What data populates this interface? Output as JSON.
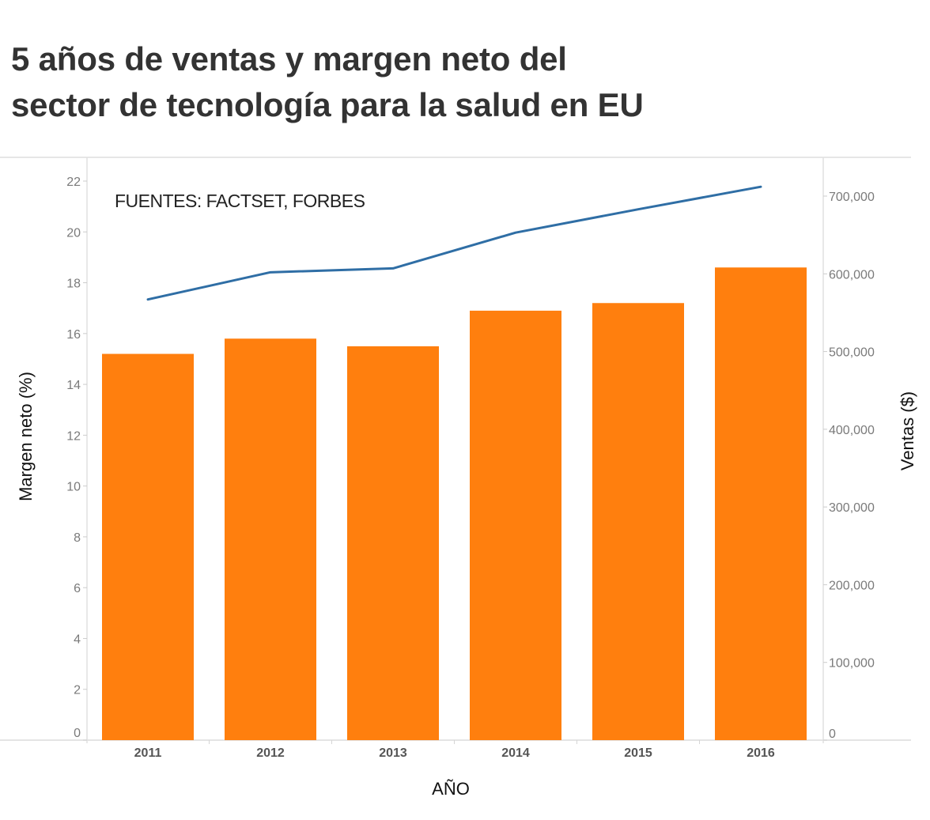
{
  "title": {
    "line1": "5 años de ventas y margen neto del",
    "line2": "sector de tecnología para la salud en EU"
  },
  "chart_data": {
    "type": "bar",
    "title": "5 años de ventas y margen neto del sector de tecnología para la salud en EU",
    "annotation": "FUENTES: FACTSET, FORBES",
    "categories": [
      "2011",
      "2012",
      "2013",
      "2014",
      "2015",
      "2016"
    ],
    "xlabel": "AÑO",
    "ylabel": "Margen neto (%)",
    "y2label": "Ventas ($)",
    "ylim": [
      0,
      22
    ],
    "y2lim": [
      0,
      700000
    ],
    "yticks": [
      0,
      2,
      4,
      6,
      8,
      10,
      12,
      14,
      16,
      18,
      20,
      22
    ],
    "y2ticks": [
      0,
      100000,
      200000,
      300000,
      400000,
      500000,
      600000,
      700000
    ],
    "y2tick_labels": [
      "0",
      "100,000",
      "200,000",
      "300,000",
      "400,000",
      "500,000",
      "600,000",
      "700,000"
    ],
    "grid": false,
    "series": [
      {
        "name": "Margen neto (%)",
        "type": "bar",
        "axis": "left",
        "color": "#ff7f0e",
        "values": [
          15.2,
          15.8,
          15.5,
          16.9,
          17.2,
          18.6
        ]
      },
      {
        "name": "Ventas ($)",
        "type": "line",
        "axis": "right",
        "color": "#2f6ea5",
        "values": [
          567000,
          602000,
          607000,
          653000,
          683000,
          712000
        ]
      }
    ]
  }
}
